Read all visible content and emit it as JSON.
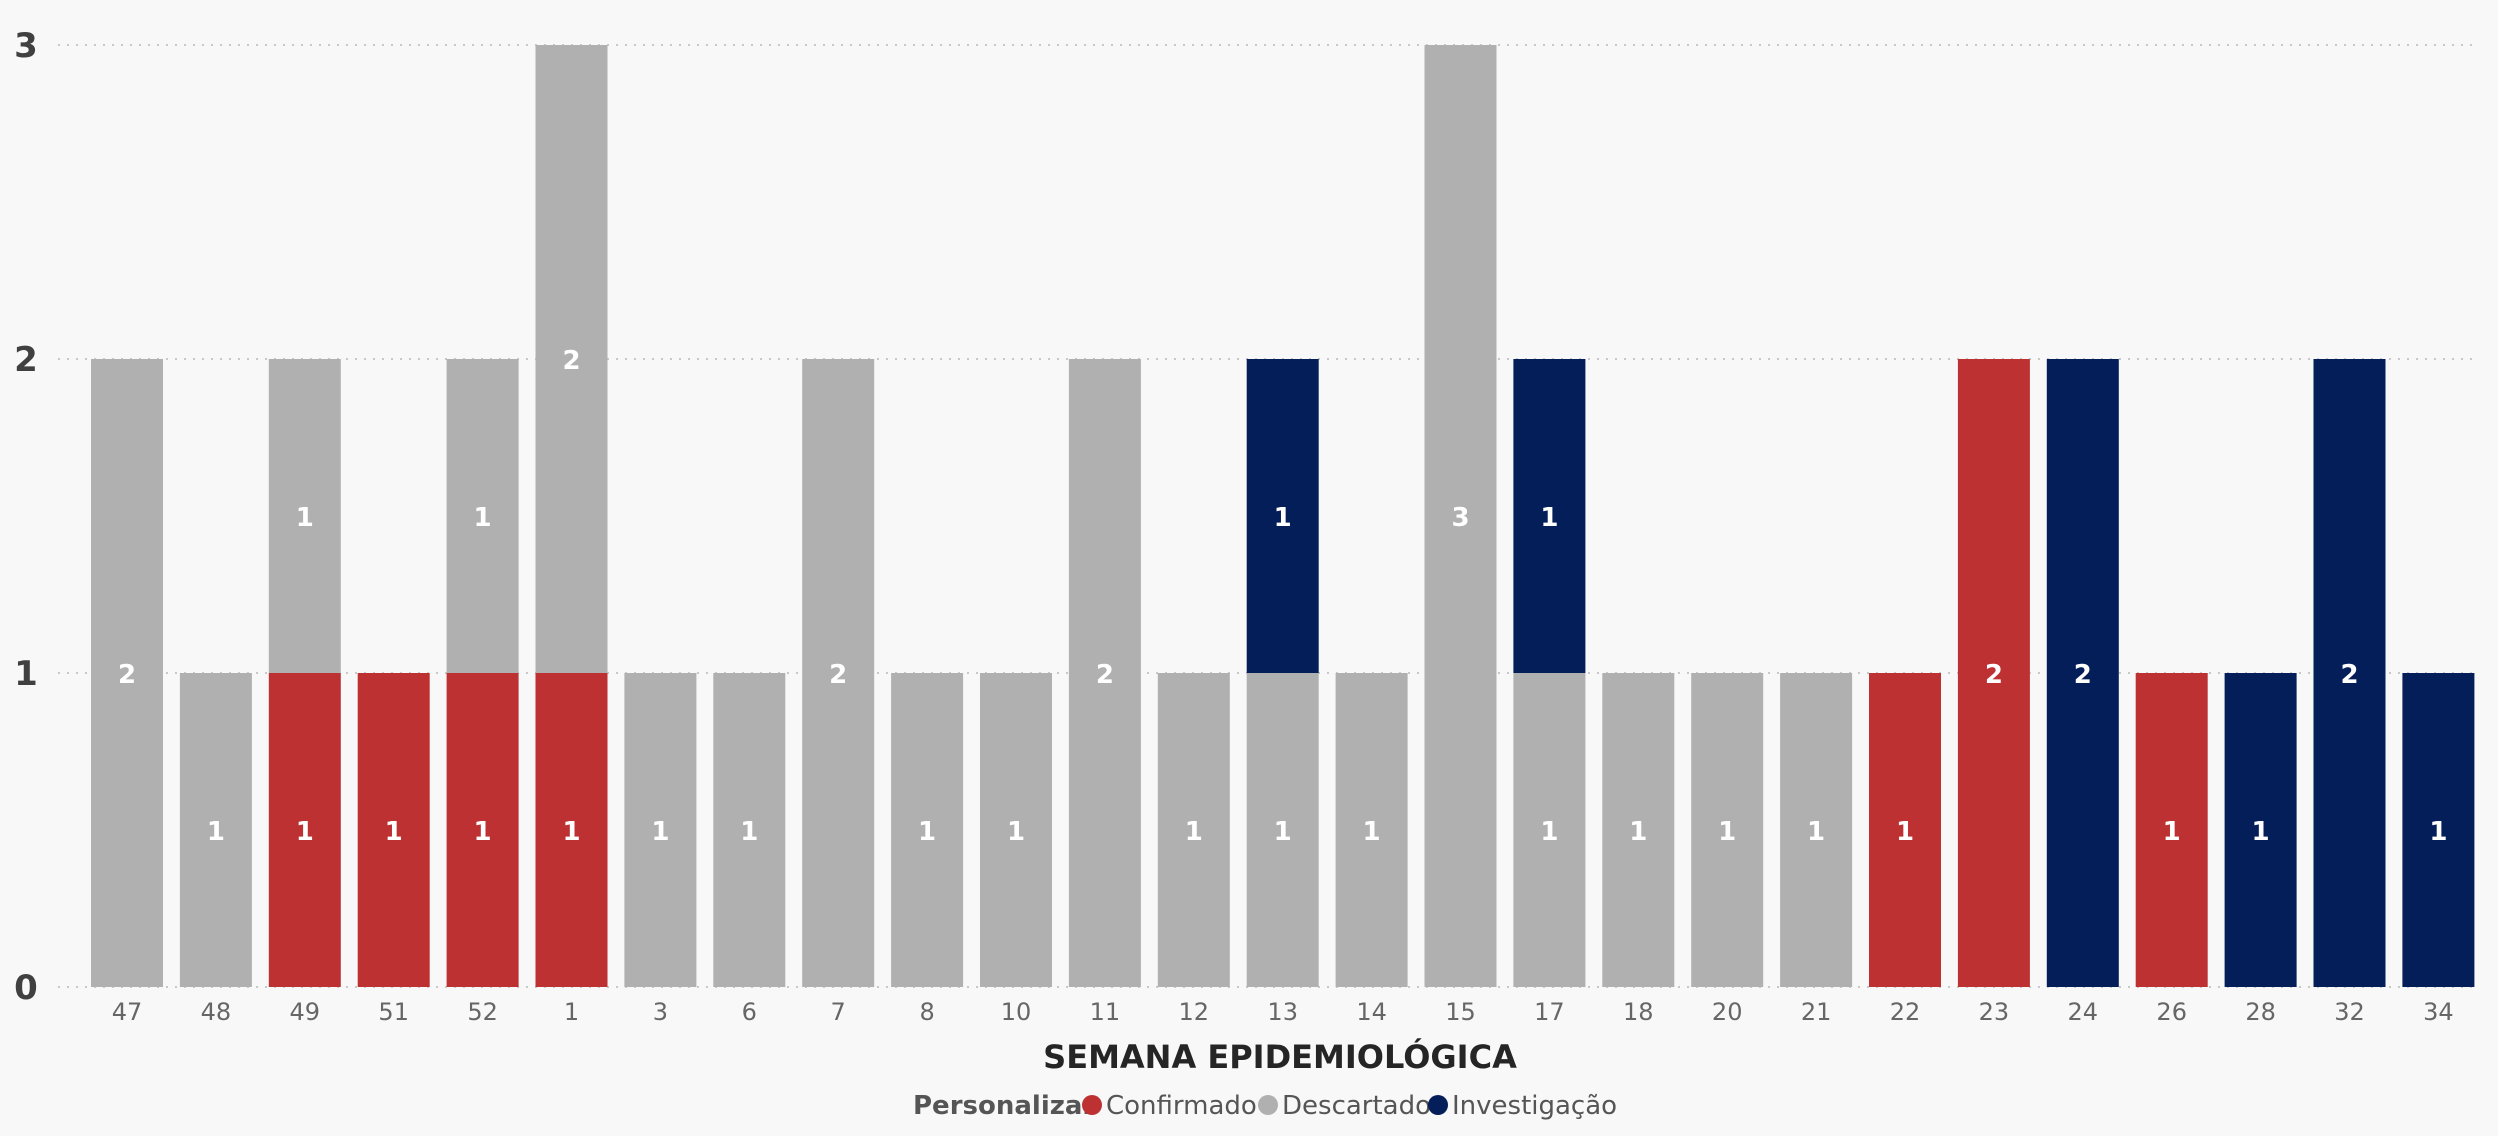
{
  "chart_data": {
    "type": "bar",
    "stacked": true,
    "xlabel": "SEMANA EPIDEMIOLÓGICA",
    "ylabel": "",
    "ylim": [
      0,
      3
    ],
    "yticks": [
      "0",
      "1",
      "2",
      "3"
    ],
    "grid": true,
    "legend": {
      "title": "Personalizar",
      "position": "bottom-center"
    },
    "categories": [
      "47",
      "48",
      "49",
      "51",
      "52",
      "1",
      "3",
      "6",
      "7",
      "8",
      "10",
      "11",
      "12",
      "13",
      "14",
      "15",
      "17",
      "18",
      "20",
      "21",
      "22",
      "23",
      "24",
      "26",
      "28",
      "32",
      "34"
    ],
    "series": [
      {
        "name": "Confirmado",
        "color": "#bd3133",
        "values": [
          0,
          0,
          1,
          1,
          1,
          1,
          0,
          0,
          0,
          0,
          0,
          0,
          0,
          0,
          0,
          0,
          0,
          0,
          0,
          0,
          1,
          2,
          0,
          1,
          0,
          0,
          0
        ]
      },
      {
        "name": "Descartado",
        "color": "#b0b0b0",
        "values": [
          2,
          1,
          1,
          0,
          1,
          2,
          1,
          1,
          2,
          1,
          1,
          2,
          1,
          1,
          1,
          3,
          1,
          1,
          1,
          1,
          0,
          0,
          0,
          0,
          0,
          0,
          0
        ]
      },
      {
        "name": "Investigação",
        "color": "#041e5a",
        "values": [
          0,
          0,
          0,
          0,
          0,
          0,
          0,
          0,
          0,
          0,
          0,
          0,
          0,
          1,
          0,
          0,
          1,
          0,
          0,
          0,
          0,
          0,
          2,
          0,
          1,
          2,
          1
        ]
      }
    ]
  }
}
